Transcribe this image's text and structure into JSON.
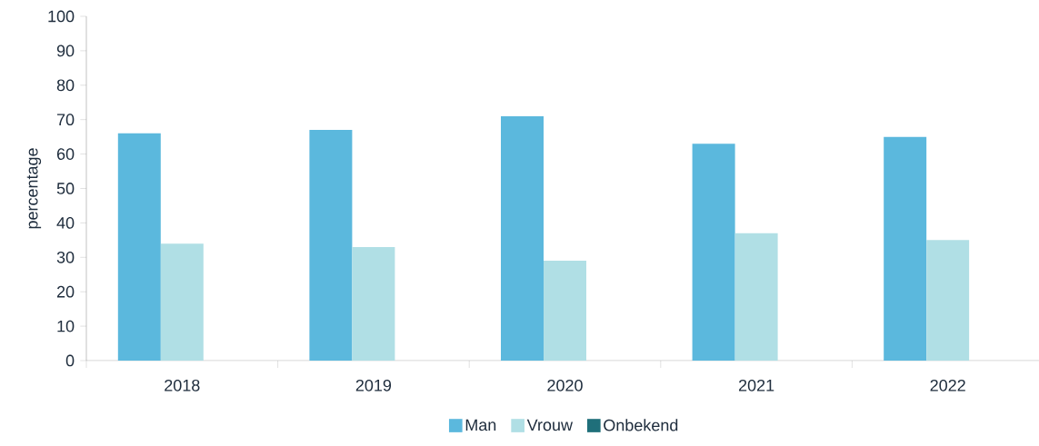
{
  "chart_data": {
    "type": "bar",
    "ylabel": "percentage",
    "categories": [
      "2018",
      "2019",
      "2020",
      "2021",
      "2022"
    ],
    "series": [
      {
        "name": "Man",
        "color": "#5bb8dd",
        "values": [
          66,
          67,
          71,
          63,
          65
        ]
      },
      {
        "name": "Vrouw",
        "color": "#b0dfe5",
        "values": [
          34,
          33,
          29,
          37,
          35
        ]
      },
      {
        "name": "Onbekend",
        "color": "#1f6f7a",
        "values": [
          0,
          0,
          0,
          0,
          0
        ]
      }
    ],
    "ylim": [
      0,
      100
    ],
    "yticks": [
      0,
      10,
      20,
      30,
      40,
      50,
      60,
      70,
      80,
      90,
      100
    ],
    "grid": false,
    "legend": "bottom"
  }
}
